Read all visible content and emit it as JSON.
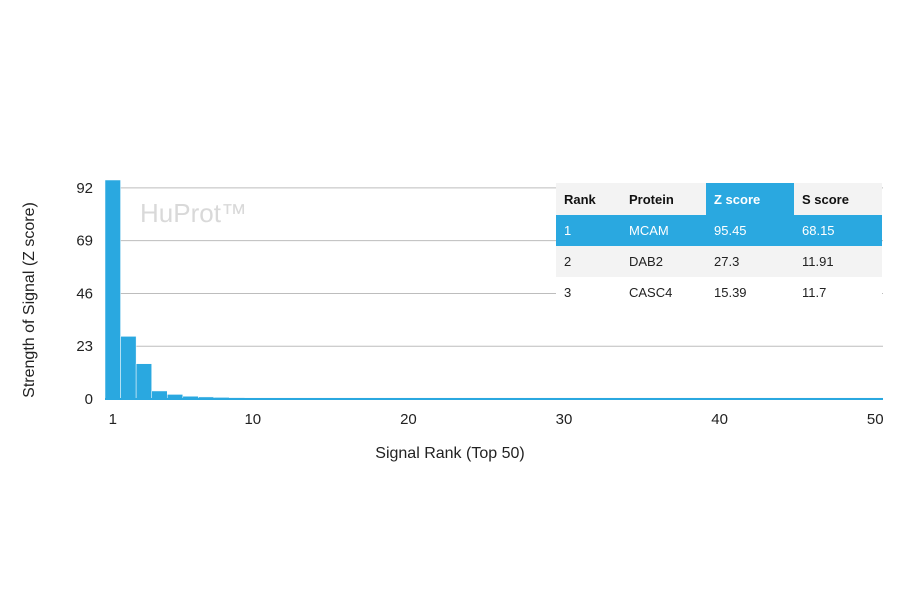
{
  "chart_data": {
    "type": "bar",
    "watermark": "HuProt™",
    "xlabel": "Signal Rank (Top 50)",
    "ylabel": "Strength of Signal (Z score)",
    "xticks": [
      1,
      10,
      20,
      30,
      40,
      50
    ],
    "yticks": [
      0,
      23,
      46,
      69,
      92
    ],
    "ylim": [
      0,
      95.45
    ],
    "xlim": [
      1,
      50
    ],
    "grid": true,
    "color": "#2aa8e0",
    "x": [
      1,
      2,
      3,
      4,
      5,
      6,
      7,
      8,
      9,
      10,
      11,
      12,
      13,
      14,
      15,
      16,
      17,
      18,
      19,
      20,
      21,
      22,
      23,
      24,
      25,
      26,
      27,
      28,
      29,
      30,
      31,
      32,
      33,
      34,
      35,
      36,
      37,
      38,
      39,
      40,
      41,
      42,
      43,
      44,
      45,
      46,
      47,
      48,
      49,
      50
    ],
    "values": [
      95.45,
      27.3,
      15.39,
      3.5,
      2.0,
      1.2,
      0.9,
      0.7,
      0.6,
      0.5,
      0.5,
      0.5,
      0.5,
      0.5,
      0.5,
      0.5,
      0.5,
      0.5,
      0.5,
      0.5,
      0.5,
      0.5,
      0.5,
      0.5,
      0.5,
      0.5,
      0.5,
      0.5,
      0.5,
      0.5,
      0.5,
      0.5,
      0.5,
      0.5,
      0.5,
      0.5,
      0.5,
      0.5,
      0.5,
      0.5,
      0.5,
      0.5,
      0.5,
      0.5,
      0.5,
      0.5,
      0.5,
      0.5,
      0.5,
      0.5
    ]
  },
  "table": {
    "headers": [
      "Rank",
      "Protein",
      "Z score",
      "S score"
    ],
    "rows": [
      [
        "1",
        "MCAM",
        "95.45",
        "68.15"
      ],
      [
        "2",
        "DAB2",
        "27.3",
        "11.91"
      ],
      [
        "3",
        "CASC4",
        "15.39",
        "11.7"
      ]
    ]
  }
}
